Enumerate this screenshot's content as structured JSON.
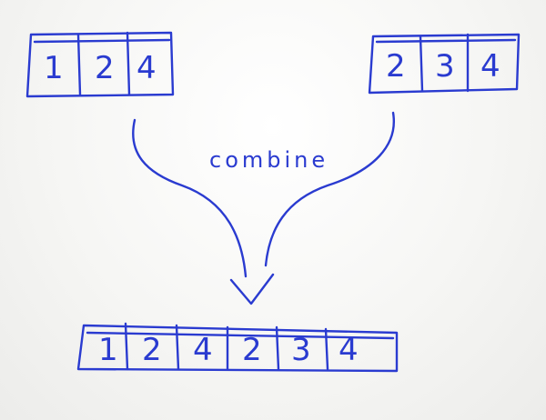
{
  "diagram": {
    "left_array": [
      "1",
      "2",
      "4"
    ],
    "right_array": [
      "2",
      "3",
      "4"
    ],
    "result_array": [
      "1",
      "2",
      "4",
      "2",
      "3",
      "4"
    ],
    "operation_label": "combine",
    "ink_color": "#2a3bd0"
  }
}
